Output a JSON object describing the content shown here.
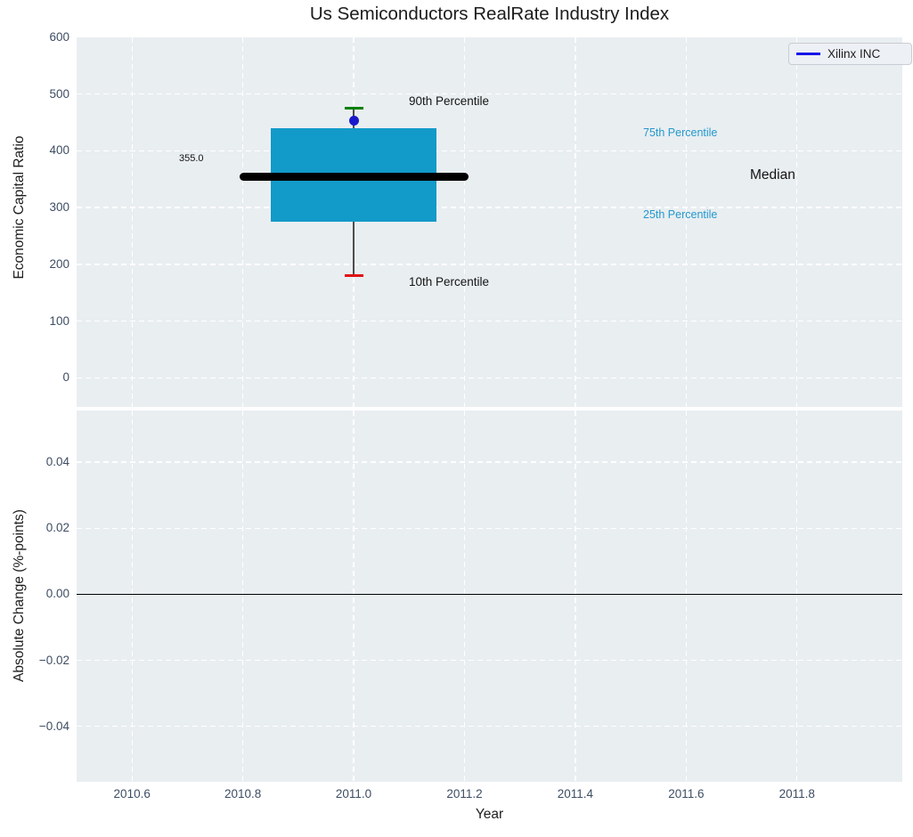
{
  "chart_data": {
    "type": "box",
    "title": "Us Semiconductors RealRate Industry Index",
    "xlabel": "Year",
    "grid": true,
    "legend": {
      "label": "Xilinx INC",
      "position": "upper right"
    },
    "xlim": [
      2010.5,
      2011.99
    ],
    "xtick_values": [
      2010.6,
      2010.8,
      2011.0,
      2011.2,
      2011.4,
      2011.6,
      2011.8
    ],
    "xtick_labels": [
      "2010.6",
      "2010.8",
      "2011.0",
      "2011.2",
      "2011.4",
      "2011.6",
      "2011.8"
    ],
    "subplots": [
      {
        "ylabel": "Economic Capital Ratio",
        "ylim": [
          -51.2,
          600
        ],
        "ytick_values": [
          600,
          500,
          400,
          300,
          200,
          100,
          0
        ],
        "ytick_labels": [
          "600",
          "500",
          "400",
          "300",
          "200",
          "100",
          "0"
        ],
        "series": [
          {
            "name": "Xilinx INC",
            "x": 2011.0,
            "p10": 180,
            "p25": 275,
            "median": 355.0,
            "p75": 440,
            "p90": 475,
            "value": 454
          }
        ]
      },
      {
        "ylabel": "Absolute Change (%-points)",
        "ylim": [
          -0.0568,
          0.0557
        ],
        "ytick_values": [
          0.04,
          0.02,
          0.0,
          -0.02,
          -0.04
        ],
        "ytick_labels": [
          "0.04",
          "0.02",
          "0.00",
          "−0.02",
          "−0.04"
        ],
        "zero_line": 0.0
      }
    ],
    "annotations": {
      "p90": "90th Percentile",
      "p10": "10th Percentile",
      "p75": "75th Percentile",
      "p25": "25th Percentile",
      "median": "Median",
      "median_value": "355.0"
    },
    "colors": {
      "box": "#129ac9",
      "percentile_text": "#2499ce",
      "marker": "#1a1acc",
      "legend_line": "#1515e8",
      "cap_top": "#088008",
      "cap_bottom": "#e01310",
      "median": "#000000",
      "whisker": "#4d4d4d",
      "zero_line": "#000000",
      "plot_background": "#e9eef1"
    }
  }
}
